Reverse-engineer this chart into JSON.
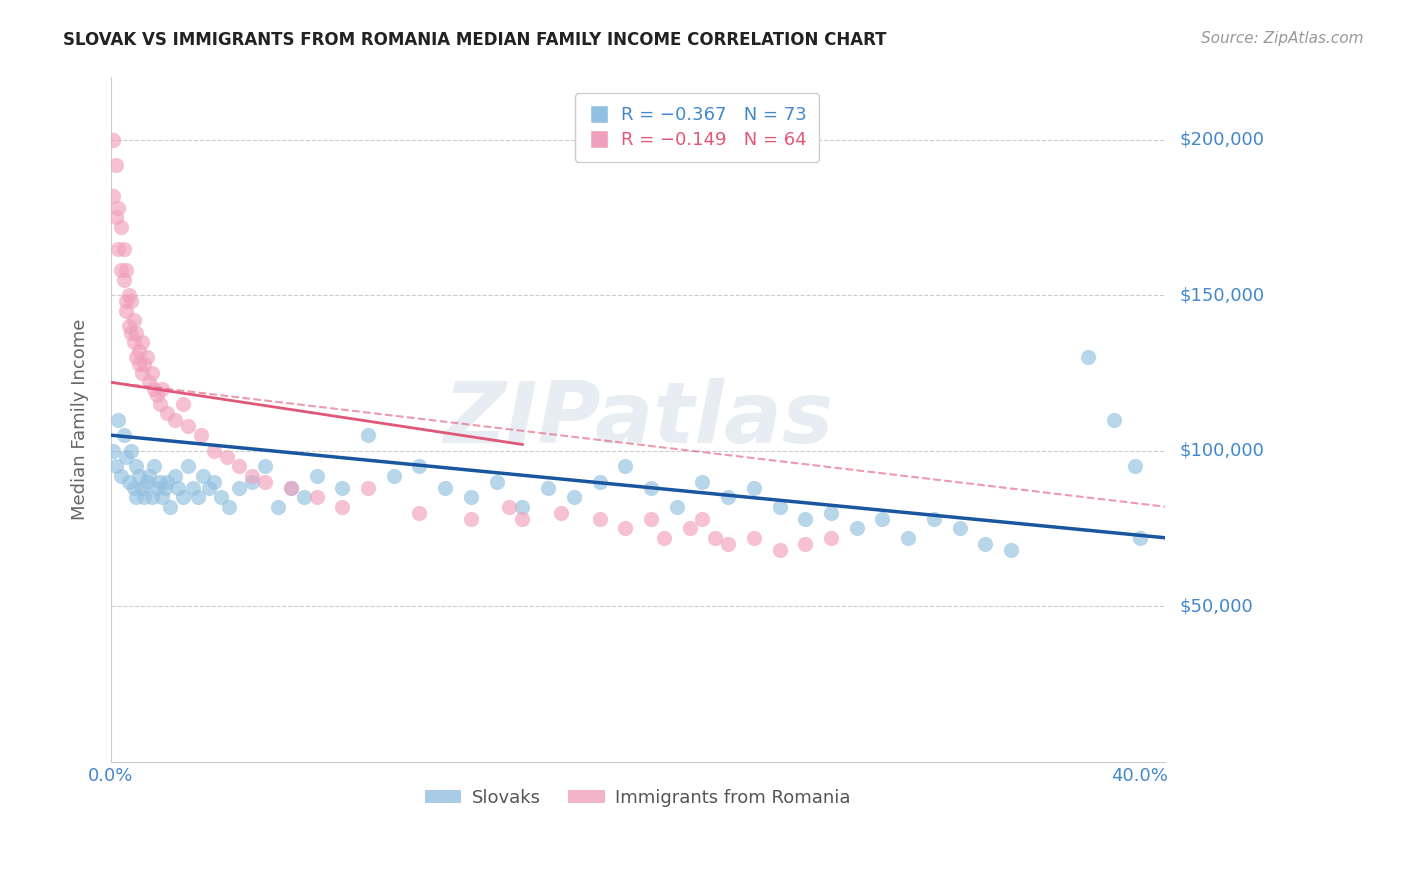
{
  "title": "SLOVAK VS IMMIGRANTS FROM ROMANIA MEDIAN FAMILY INCOME CORRELATION CHART",
  "source": "Source: ZipAtlas.com",
  "ylabel": "Median Family Income",
  "watermark": "ZIPatlas",
  "legend_labels_bottom": [
    "Slovaks",
    "Immigrants from Romania"
  ],
  "ylim": [
    0,
    220000
  ],
  "xlim": [
    0.0,
    0.41
  ],
  "yticks": [
    50000,
    100000,
    150000,
    200000
  ],
  "ytick_labels": [
    "$50,000",
    "$100,000",
    "$150,000",
    "$200,000"
  ],
  "xticks": [
    0.0,
    0.1,
    0.2,
    0.3,
    0.4
  ],
  "xtick_labels": [
    "0.0%",
    "",
    "",
    "",
    "40.0%"
  ],
  "blue_color": "#92c0e0",
  "pink_color": "#f0a0bc",
  "blue_line_color": "#1a55a0",
  "pink_line_color": "#e05878",
  "axis_label_color": "#4488cc",
  "grid_color": "#cccccc",
  "blue_scatter": {
    "x": [
      0.001,
      0.002,
      0.003,
      0.004,
      0.005,
      0.006,
      0.007,
      0.008,
      0.009,
      0.01,
      0.01,
      0.011,
      0.012,
      0.013,
      0.014,
      0.015,
      0.016,
      0.017,
      0.018,
      0.019,
      0.02,
      0.021,
      0.022,
      0.023,
      0.025,
      0.026,
      0.028,
      0.03,
      0.032,
      0.034,
      0.036,
      0.038,
      0.04,
      0.043,
      0.046,
      0.05,
      0.055,
      0.06,
      0.065,
      0.07,
      0.075,
      0.08,
      0.09,
      0.1,
      0.11,
      0.12,
      0.13,
      0.14,
      0.15,
      0.16,
      0.17,
      0.18,
      0.19,
      0.2,
      0.21,
      0.22,
      0.23,
      0.24,
      0.25,
      0.26,
      0.27,
      0.28,
      0.29,
      0.3,
      0.31,
      0.32,
      0.33,
      0.34,
      0.35,
      0.38,
      0.39,
      0.398,
      0.4
    ],
    "y": [
      100000,
      95000,
      110000,
      92000,
      105000,
      98000,
      90000,
      100000,
      88000,
      95000,
      85000,
      92000,
      88000,
      85000,
      90000,
      92000,
      85000,
      95000,
      88000,
      90000,
      85000,
      88000,
      90000,
      82000,
      92000,
      88000,
      85000,
      95000,
      88000,
      85000,
      92000,
      88000,
      90000,
      85000,
      82000,
      88000,
      90000,
      95000,
      82000,
      88000,
      85000,
      92000,
      88000,
      105000,
      92000,
      95000,
      88000,
      85000,
      90000,
      82000,
      88000,
      85000,
      90000,
      95000,
      88000,
      82000,
      90000,
      85000,
      88000,
      82000,
      78000,
      80000,
      75000,
      78000,
      72000,
      78000,
      75000,
      70000,
      68000,
      130000,
      110000,
      95000,
      72000
    ]
  },
  "pink_scatter": {
    "x": [
      0.001,
      0.001,
      0.002,
      0.002,
      0.003,
      0.003,
      0.004,
      0.004,
      0.005,
      0.005,
      0.006,
      0.006,
      0.006,
      0.007,
      0.007,
      0.008,
      0.008,
      0.009,
      0.009,
      0.01,
      0.01,
      0.011,
      0.011,
      0.012,
      0.012,
      0.013,
      0.014,
      0.015,
      0.016,
      0.017,
      0.018,
      0.019,
      0.02,
      0.022,
      0.025,
      0.028,
      0.03,
      0.035,
      0.04,
      0.045,
      0.05,
      0.055,
      0.06,
      0.07,
      0.08,
      0.09,
      0.1,
      0.12,
      0.14,
      0.155,
      0.16,
      0.175,
      0.19,
      0.2,
      0.21,
      0.215,
      0.225,
      0.23,
      0.235,
      0.24,
      0.25,
      0.26,
      0.27,
      0.28
    ],
    "y": [
      200000,
      182000,
      192000,
      175000,
      178000,
      165000,
      172000,
      158000,
      165000,
      155000,
      158000,
      148000,
      145000,
      150000,
      140000,
      148000,
      138000,
      142000,
      135000,
      138000,
      130000,
      132000,
      128000,
      135000,
      125000,
      128000,
      130000,
      122000,
      125000,
      120000,
      118000,
      115000,
      120000,
      112000,
      110000,
      115000,
      108000,
      105000,
      100000,
      98000,
      95000,
      92000,
      90000,
      88000,
      85000,
      82000,
      88000,
      80000,
      78000,
      82000,
      78000,
      80000,
      78000,
      75000,
      78000,
      72000,
      75000,
      78000,
      72000,
      70000,
      72000,
      68000,
      70000,
      72000
    ]
  },
  "blue_line": {
    "x0": 0.0,
    "x1": 0.41,
    "y0": 105000,
    "y1": 72000
  },
  "pink_line_solid": {
    "x0": 0.0,
    "x1": 0.16,
    "y0": 122000,
    "y1": 102000
  },
  "pink_line_dashed": {
    "x0": 0.0,
    "x1": 0.41,
    "y0": 122000,
    "y1": 82000
  }
}
